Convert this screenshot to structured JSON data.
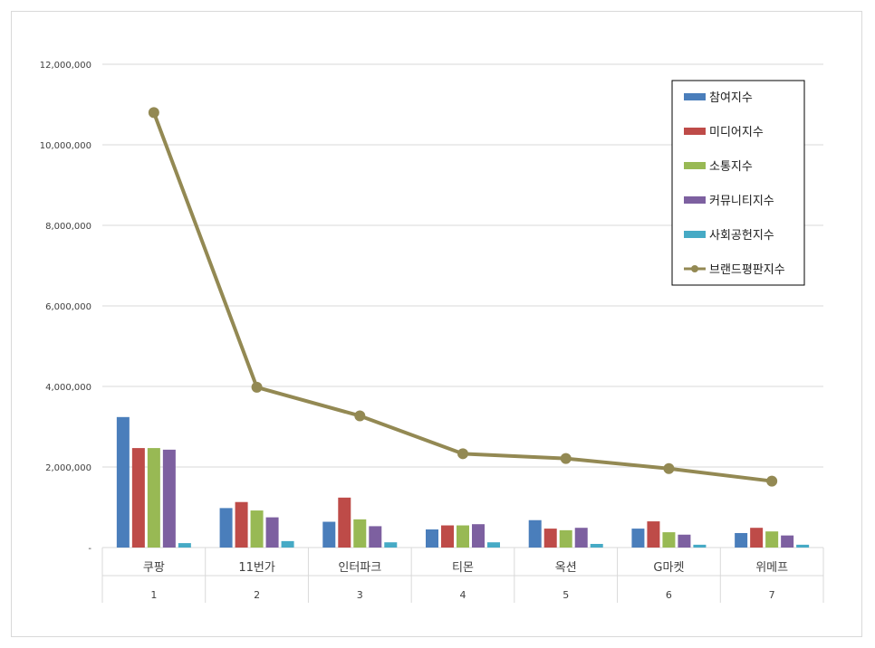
{
  "chart_data": {
    "type": "bar",
    "categories": [
      "쿠팡",
      "11번가",
      "인터파크",
      "티몬",
      "옥션",
      "G마켓",
      "위메프"
    ],
    "category_numbers": [
      "1",
      "2",
      "3",
      "4",
      "5",
      "6",
      "7"
    ],
    "y_ticks": [
      "-",
      "2,000,000",
      "4,000,000",
      "6,000,000",
      "8,000,000",
      "10,000,000",
      "12,000,000"
    ],
    "ylim": [
      0,
      12000000
    ],
    "grid": true,
    "legend_position": "top-right",
    "series": [
      {
        "name": "참여지수",
        "type": "bar",
        "color": "#4a7ebb",
        "values": [
          3240000,
          980000,
          640000,
          450000,
          680000,
          470000,
          360000
        ]
      },
      {
        "name": " 미디어지수",
        "type": "bar",
        "color": "#be4b48",
        "values": [
          2470000,
          1130000,
          1240000,
          550000,
          470000,
          650000,
          490000
        ]
      },
      {
        "name": "소통지수",
        "type": "bar",
        "color": "#98b954",
        "values": [
          2470000,
          920000,
          700000,
          550000,
          430000,
          380000,
          400000
        ]
      },
      {
        "name": "커뮤니티지수",
        "type": "bar",
        "color": "#7d60a0",
        "values": [
          2430000,
          750000,
          530000,
          580000,
          490000,
          320000,
          300000
        ]
      },
      {
        "name": "사회공헌지수",
        "type": "bar",
        "color": "#46aac5",
        "values": [
          110000,
          160000,
          130000,
          130000,
          90000,
          70000,
          70000
        ]
      },
      {
        "name": "브랜드평판지수",
        "type": "line",
        "color": "#938953",
        "values": [
          10800000,
          3980000,
          3270000,
          2330000,
          2210000,
          1960000,
          1650000
        ]
      }
    ]
  }
}
